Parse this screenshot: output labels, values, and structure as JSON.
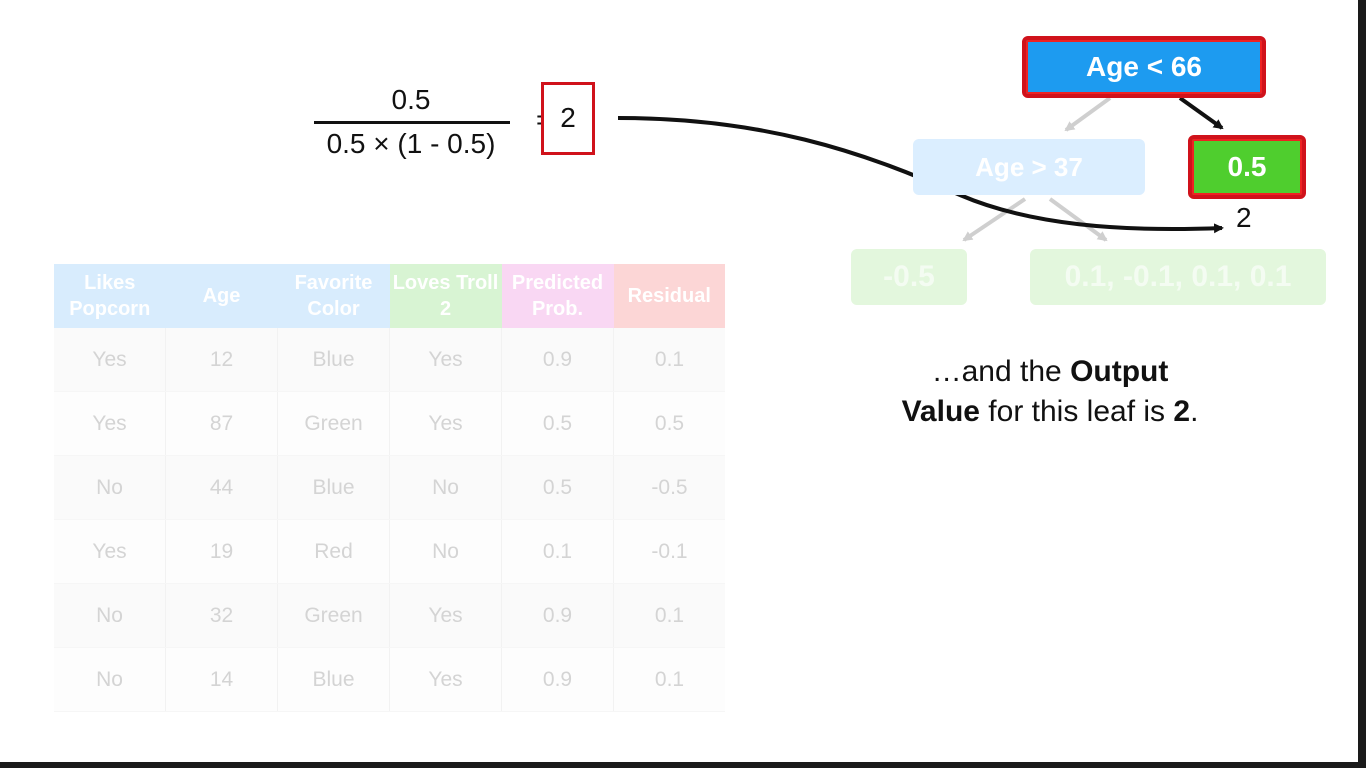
{
  "formula": {
    "numerator": "0.5",
    "denominator": "0.5 × (1 - 0.5)",
    "equals": "=",
    "result": "2"
  },
  "tree": {
    "root_label": "Age < 66",
    "left_node_label": "Age > 37",
    "right_leaf_label": "0.5",
    "leaf_a_label": "-0.5",
    "leaf_b_label": "0.1, -0.1, 0.1, 0.1",
    "leaf_output": "2"
  },
  "caption": {
    "prefix": "…and the ",
    "bold1": "Output",
    "bold2": "Value",
    "middle": " for this leaf is ",
    "bold3": "2",
    "suffix": "."
  },
  "table": {
    "headers": [
      {
        "text": "Likes Popcorn",
        "color": "#d8ecfd"
      },
      {
        "text": "Age",
        "color": "#d8ecfd"
      },
      {
        "text": "Favorite Color",
        "color": "#d8ecfd"
      },
      {
        "text": "Loves Troll 2",
        "color": "#d8f4d3"
      },
      {
        "text": "Predicted Prob.",
        "color": "#f9d7f3"
      },
      {
        "text": "Residual",
        "color": "#fcd6d6"
      }
    ],
    "rows": [
      [
        "Yes",
        "12",
        "Blue",
        "Yes",
        "0.9",
        "0.1"
      ],
      [
        "Yes",
        "87",
        "Green",
        "Yes",
        "0.5",
        "0.5"
      ],
      [
        "No",
        "44",
        "Blue",
        "No",
        "0.5",
        "-0.5"
      ],
      [
        "Yes",
        "19",
        "Red",
        "No",
        "0.1",
        "-0.1"
      ],
      [
        "No",
        "32",
        "Green",
        "Yes",
        "0.9",
        "0.1"
      ],
      [
        "No",
        "14",
        "Blue",
        "Yes",
        "0.9",
        "0.1"
      ]
    ]
  },
  "colors": {
    "highlight_border": "#d0121b",
    "root_fill": "#1d9bf0",
    "leaf_fill": "#4fce2e"
  }
}
